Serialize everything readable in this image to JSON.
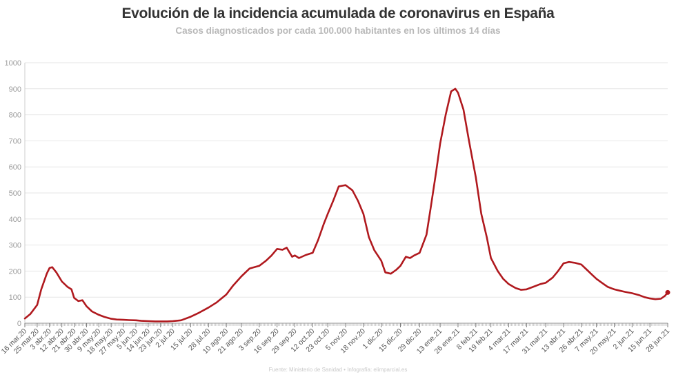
{
  "header": {
    "title": "Evolución de la incidencia acumulada de coronavirus en España",
    "subtitle": "Casos diagnosticados por cada 100.000 habitantes en los últimos 14 días"
  },
  "footer": {
    "source": "Fuente: Ministerio de Sanidad • Infografía: elimparcial.es"
  },
  "colors": {
    "line": "#b0191e",
    "grid": "#e6e6e6",
    "axis": "#999999"
  },
  "chart_data": {
    "type": "line",
    "title": "Evolución de la incidencia acumulada de coronavirus en España",
    "subtitle": "Casos diagnosticados por cada 100.000 habitantes en los últimos 14 días",
    "xlabel": "",
    "ylabel": "",
    "ylim": [
      0,
      1000
    ],
    "yticks": [
      0,
      100,
      200,
      300,
      400,
      500,
      600,
      700,
      800,
      900,
      1000
    ],
    "grid": true,
    "legend": "none",
    "x_tick_labels": [
      "16 mar.20",
      "25 mar.20",
      "3 abr.20",
      "12 abr.20",
      "21 abr.20",
      "30 abr.20",
      "9 may.20",
      "18 may.20",
      "27 may.20",
      "5 jun.20",
      "14 jun.20",
      "23 jun.20",
      "2 jul.20",
      "15 jul.20",
      "28 jul.20",
      "10 ago.20",
      "21 ago.20",
      "3 sep.20",
      "16 sep.20",
      "29 sep.20",
      "12 oct.20",
      "23 oct.20",
      "5 nov.20",
      "18 nov.20",
      "1 dic.20",
      "15 dic.20",
      "29 dic.20",
      "13 ene.21",
      "26 ene.21",
      "8 feb.21",
      "19 feb.21",
      "4 mar.21",
      "17 mar.21",
      "31 mar.21",
      "13 abr.21",
      "26 abr.21",
      "7 may.21",
      "20 may.21",
      "2 jun.21",
      "15 jun.21",
      "28 jun.21"
    ],
    "series": [
      {
        "color": "#b0191e",
        "points": [
          [
            "16 mar.20",
            18
          ],
          [
            "20 mar.20",
            35
          ],
          [
            "25 mar.20",
            70
          ],
          [
            "28 mar.20",
            130
          ],
          [
            "1 abr.20",
            190
          ],
          [
            "3 abr.20",
            212
          ],
          [
            "5 abr.20",
            215
          ],
          [
            "8 abr.20",
            195
          ],
          [
            "12 abr.20",
            160
          ],
          [
            "16 abr.20",
            140
          ],
          [
            "19 abr.20",
            130
          ],
          [
            "21 abr.20",
            97
          ],
          [
            "24 abr.20",
            85
          ],
          [
            "27 abr.20",
            88
          ],
          [
            "30 abr.20",
            65
          ],
          [
            "4 may.20",
            45
          ],
          [
            "9 may.20",
            32
          ],
          [
            "13 may.20",
            24
          ],
          [
            "18 may.20",
            17
          ],
          [
            "22 may.20",
            14
          ],
          [
            "27 may.20",
            13
          ],
          [
            "31 may.20",
            12
          ],
          [
            "5 jun.20",
            11
          ],
          [
            "9 jun.20",
            9
          ],
          [
            "14 jun.20",
            8
          ],
          [
            "19 jun.20",
            7
          ],
          [
            "23 jun.20",
            7
          ],
          [
            "28 jun.20",
            7
          ],
          [
            "2 jul.20",
            8
          ],
          [
            "8 jul.20",
            11
          ],
          [
            "15 jul.20",
            25
          ],
          [
            "21 jul.20",
            40
          ],
          [
            "28 jul.20",
            60
          ],
          [
            "3 ago.20",
            80
          ],
          [
            "10 ago.20",
            110
          ],
          [
            "15 ago.20",
            145
          ],
          [
            "21 ago.20",
            180
          ],
          [
            "27 ago.20",
            210
          ],
          [
            "3 sep.20",
            220
          ],
          [
            "8 sep.20",
            240
          ],
          [
            "12 sep.20",
            260
          ],
          [
            "16 sep.20",
            285
          ],
          [
            "20 sep.20",
            282
          ],
          [
            "23 sep.20",
            290
          ],
          [
            "27 sep.20",
            255
          ],
          [
            "29 sep.20",
            260
          ],
          [
            "2 oct.20",
            250
          ],
          [
            "7 oct.20",
            262
          ],
          [
            "12 oct.20",
            270
          ],
          [
            "16 oct.20",
            320
          ],
          [
            "20 oct.20",
            380
          ],
          [
            "23 oct.20",
            420
          ],
          [
            "27 oct.20",
            470
          ],
          [
            "31 oct.20",
            525
          ],
          [
            "5 nov.20",
            530
          ],
          [
            "10 nov.20",
            510
          ],
          [
            "14 nov.20",
            470
          ],
          [
            "18 nov.20",
            420
          ],
          [
            "22 nov.20",
            330
          ],
          [
            "26 nov.20",
            280
          ],
          [
            "1 dic.20",
            240
          ],
          [
            "4 dic.20",
            195
          ],
          [
            "8 dic.20",
            190
          ],
          [
            "12 dic.20",
            205
          ],
          [
            "15 dic.20",
            220
          ],
          [
            "19 dic.20",
            255
          ],
          [
            "22 dic.20",
            250
          ],
          [
            "25 dic.20",
            260
          ],
          [
            "29 dic.20",
            270
          ],
          [
            "3 ene.21",
            340
          ],
          [
            "6 ene.21",
            440
          ],
          [
            "10 ene.21",
            580
          ],
          [
            "13 ene.21",
            690
          ],
          [
            "17 ene.21",
            800
          ],
          [
            "21 ene.21",
            890
          ],
          [
            "24 ene.21",
            900
          ],
          [
            "26 ene.21",
            885
          ],
          [
            "30 ene.21",
            820
          ],
          [
            "3 feb.21",
            700
          ],
          [
            "8 feb.21",
            560
          ],
          [
            "12 feb.21",
            420
          ],
          [
            "16 feb.21",
            330
          ],
          [
            "19 feb.21",
            250
          ],
          [
            "24 feb.21",
            200
          ],
          [
            "28 feb.21",
            170
          ],
          [
            "4 mar.21",
            150
          ],
          [
            "9 mar.21",
            135
          ],
          [
            "13 mar.21",
            128
          ],
          [
            "17 mar.21",
            130
          ],
          [
            "22 mar.21",
            140
          ],
          [
            "27 mar.21",
            150
          ],
          [
            "31 mar.21",
            155
          ],
          [
            "5 abr.21",
            175
          ],
          [
            "9 abr.21",
            200
          ],
          [
            "13 abr.21",
            230
          ],
          [
            "17 abr.21",
            235
          ],
          [
            "21 abr.21",
            232
          ],
          [
            "26 abr.21",
            225
          ],
          [
            "30 abr.21",
            205
          ],
          [
            "3 may.21",
            190
          ],
          [
            "7 may.21",
            170
          ],
          [
            "11 may.21",
            155
          ],
          [
            "15 may.21",
            140
          ],
          [
            "20 may.21",
            130
          ],
          [
            "24 may.21",
            125
          ],
          [
            "28 may.21",
            120
          ],
          [
            "2 jun.21",
            115
          ],
          [
            "7 jun.21",
            108
          ],
          [
            "11 jun.21",
            100
          ],
          [
            "15 jun.21",
            95
          ],
          [
            "19 jun.21",
            92
          ],
          [
            "23 jun.21",
            94
          ],
          [
            "26 jun.21",
            105
          ],
          [
            "28 jun.21",
            118
          ]
        ]
      }
    ]
  }
}
